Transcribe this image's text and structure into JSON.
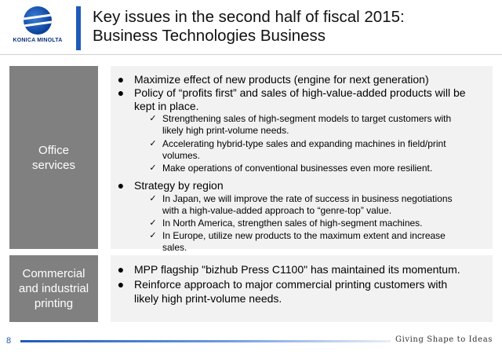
{
  "header": {
    "logo_text": "KONICA MINOLTA",
    "title_line1": "Key issues in the second half of fiscal 2015:",
    "title_line2": "Business Technologies Business"
  },
  "sections": {
    "office": {
      "label_line1": "Office",
      "label_line2": "services",
      "b1": "Maximize effect of new products (engine for next generation)",
      "b2_line1": "Policy of “profits first” and sales of high-value-added products will be",
      "b2_line2": "kept in place.",
      "s1_line1": "Strengthening sales of high-segment models to target customers with",
      "s1_line2": "likely high print-volume needs.",
      "s2_line1": "Accelerating hybrid-type sales and expanding machines in field/print",
      "s2_line2": "volumes.",
      "s3": "Make operations of conventional businesses even more resilient.",
      "b3": "Strategy by region",
      "r1_line1": "In Japan, we will improve the rate of success in business negotiations",
      "r1_line2": "with a high-value-added approach to “genre-top” value.",
      "r2": "In North America, strengthen sales of high-segment machines.",
      "r3_line1": "In Europe, utilize new products to the maximum extent and increase",
      "r3_line2": "sales."
    },
    "commercial": {
      "label_line1": "Commercial",
      "label_line2": "and industrial",
      "label_line3": "printing",
      "b1": "MPP flagship \"bizhub Press C1100\" has maintained its momentum.",
      "b2_line1": "Reinforce approach to major commercial printing customers with",
      "b2_line2": "likely high print-volume needs."
    }
  },
  "glyphs": {
    "bullet": "●",
    "check": "✓"
  },
  "footer": {
    "page_number": "8",
    "slogan": "Giving Shape to Ideas"
  },
  "colors": {
    "accent": "#1e5bb8",
    "label_box": "#808080",
    "content_box": "#f2f2f2"
  }
}
